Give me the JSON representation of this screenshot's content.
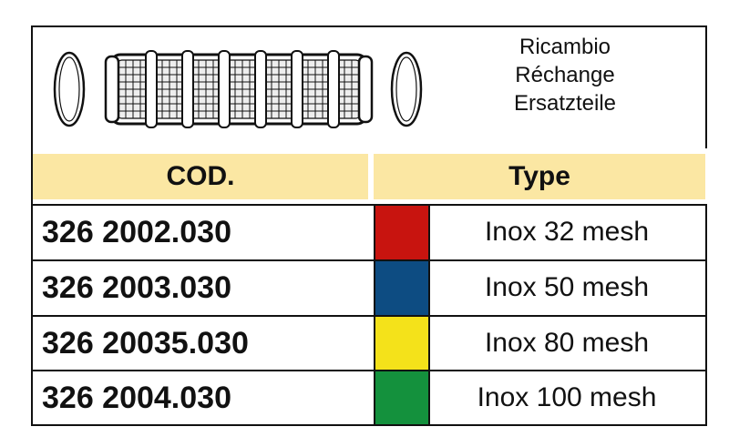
{
  "spare_part": {
    "labels": [
      "Ricambio",
      "Réchange",
      "Ersatzteile"
    ]
  },
  "table": {
    "headers": {
      "code": "COD.",
      "type": "Type"
    },
    "rows": [
      {
        "code": "326 2002.030",
        "color": "#c8140f",
        "type": "Inox 32 mesh"
      },
      {
        "code": "326 2003.030",
        "color": "#0d4c82",
        "type": "Inox 50 mesh"
      },
      {
        "code": "326 20035.030",
        "color": "#f4e21a",
        "type": "Inox 80 mesh"
      },
      {
        "code": "326 2004.030",
        "color": "#14913d",
        "type": "Inox 100 mesh"
      }
    ]
  },
  "header_color": "#fbe7a3"
}
